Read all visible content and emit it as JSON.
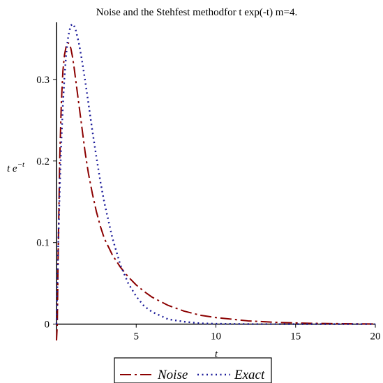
{
  "chart_data": {
    "type": "line",
    "title": "Noise and the Stehfest methodfor t exp(-t) m=4.",
    "xlabel": "t",
    "ylabel": {
      "base": "t e",
      "superscript": "−t"
    },
    "xlim": [
      0,
      20
    ],
    "ylim": [
      -0.02,
      0.37
    ],
    "x_ticks": [
      {
        "value": 5,
        "label": "5"
      },
      {
        "value": 10,
        "label": "10"
      },
      {
        "value": 15,
        "label": "15"
      },
      {
        "value": 20,
        "label": "20"
      }
    ],
    "y_ticks": [
      {
        "value": 0,
        "label": "0"
      },
      {
        "value": 0.1,
        "label": "0.1"
      },
      {
        "value": 0.2,
        "label": "0.2"
      },
      {
        "value": 0.3,
        "label": "0.3"
      }
    ],
    "grid": false,
    "legend_position": "bottom-center",
    "series": [
      {
        "name": "Noise",
        "color": "#8b0000",
        "dash": "dash-dot",
        "x": [
          0,
          0.05,
          0.1,
          0.2,
          0.3,
          0.4,
          0.5,
          0.6,
          0.7,
          0.8,
          0.9,
          1.0,
          1.1,
          1.2,
          1.4,
          1.6,
          1.8,
          2.0,
          2.25,
          2.5,
          2.75,
          3.0,
          3.5,
          4.0,
          4.5,
          5.0,
          5.5,
          6.0,
          7.0,
          8.0,
          9.0,
          10.0,
          11.0,
          12.0,
          14.0,
          16.0,
          18.0,
          20.0
        ],
        "y": [
          -0.02,
          0.0,
          0.08,
          0.2,
          0.27,
          0.31,
          0.33,
          0.34,
          0.345,
          0.344,
          0.338,
          0.328,
          0.315,
          0.3,
          0.27,
          0.24,
          0.21,
          0.185,
          0.16,
          0.138,
          0.12,
          0.105,
          0.085,
          0.07,
          0.058,
          0.048,
          0.04,
          0.033,
          0.023,
          0.016,
          0.011,
          0.008,
          0.006,
          0.004,
          0.002,
          0.001,
          0.0005,
          0.0002
        ]
      },
      {
        "name": "Exact",
        "color": "#1a1a99",
        "dash": "dotted",
        "x": [
          0,
          0.1,
          0.2,
          0.3,
          0.4,
          0.5,
          0.6,
          0.7,
          0.8,
          0.9,
          1.0,
          1.1,
          1.2,
          1.4,
          1.6,
          1.8,
          2.0,
          2.25,
          2.5,
          2.75,
          3.0,
          3.5,
          4.0,
          4.5,
          5.0,
          5.5,
          6.0,
          7.0,
          8.0,
          9.0,
          10.0,
          12.0,
          14.0,
          16.0,
          18.0,
          20.0
        ],
        "y": [
          0.0,
          0.09,
          0.164,
          0.222,
          0.268,
          0.303,
          0.329,
          0.348,
          0.359,
          0.366,
          0.368,
          0.366,
          0.361,
          0.345,
          0.323,
          0.298,
          0.271,
          0.237,
          0.205,
          0.175,
          0.149,
          0.106,
          0.073,
          0.05,
          0.034,
          0.022,
          0.015,
          0.006,
          0.003,
          0.001,
          0.0005,
          0.0001,
          0.0,
          0.0,
          0.0,
          0.0
        ]
      }
    ]
  }
}
